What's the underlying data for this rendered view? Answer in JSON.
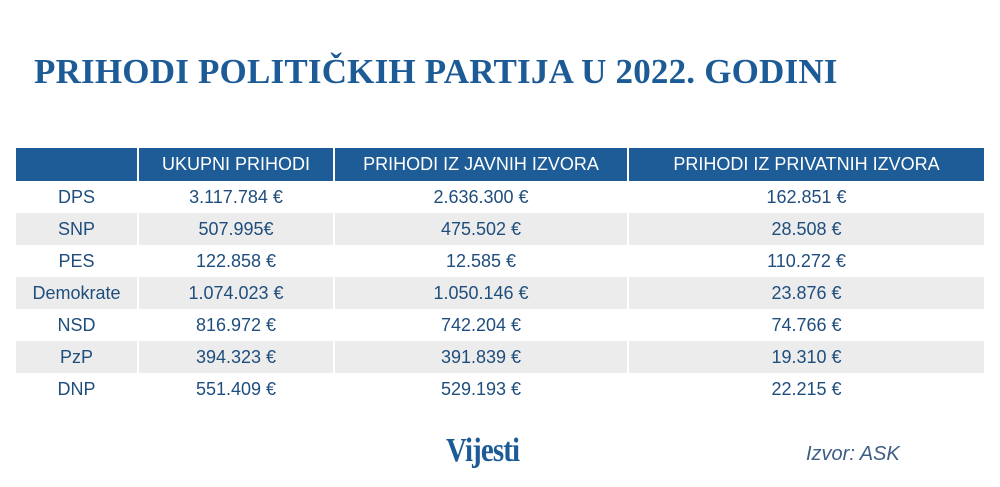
{
  "chart_data": {
    "type": "table",
    "title": "PRIHODI POLITIČKIH PARTIJA U 2022. GODINI",
    "columns": [
      "",
      "UKUPNI PRIHODI",
      "PRIHODI IZ JAVNIH IZVORA",
      "PRIHODI IZ PRIVATNIH IZVORA"
    ],
    "rows": [
      [
        "DPS",
        "3.117.784 €",
        "2.636.300 €",
        "162.851 €"
      ],
      [
        "SNP",
        "507.995€",
        "475.502 €",
        "28.508 €"
      ],
      [
        "PES",
        "122.858 €",
        "12.585 €",
        "110.272 €"
      ],
      [
        "Demokrate",
        "1.074.023 €",
        "1.050.146 €",
        "23.876 €"
      ],
      [
        "NSD",
        "816.972 €",
        "742.204 €",
        "74.766 €"
      ],
      [
        "PzP",
        "394.323 €",
        "391.839 €",
        "19.310 €"
      ],
      [
        "DNP",
        "551.409 €",
        "529.193 €",
        "22.215 €"
      ]
    ],
    "header_color": "#1d5c96",
    "text_color": "#1f4e7d",
    "stripe_color": "#ececec"
  },
  "logo": "Vijesti",
  "source": "Izvor: ASK"
}
